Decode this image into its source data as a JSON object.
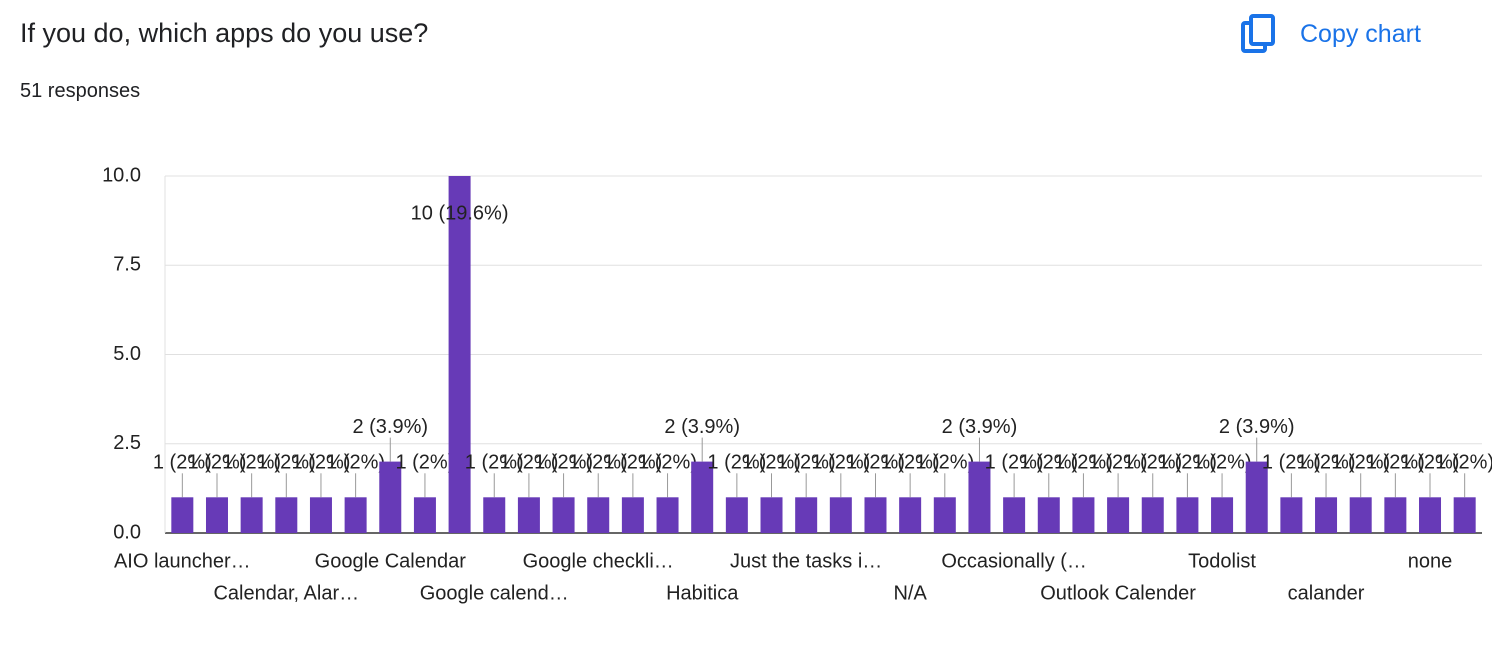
{
  "header": {
    "title": "If you do, which apps do you use?",
    "subtitle": "51 responses",
    "button": "Copy chart"
  },
  "chart_data": {
    "type": "bar",
    "color": "#673ab7",
    "grid": true,
    "ylim": [
      0,
      10
    ],
    "yticks": [
      {
        "value": 0,
        "label": "0.0"
      },
      {
        "value": 2.5,
        "label": "2.5"
      },
      {
        "value": 5,
        "label": "5.0"
      },
      {
        "value": 7.5,
        "label": "7.5"
      },
      {
        "value": 10,
        "label": "10.0"
      }
    ],
    "categories": [
      "AIO launcher…",
      null,
      null,
      "Calendar, Alar…",
      null,
      null,
      "Google Calendar",
      null,
      null,
      "Google calend…",
      null,
      null,
      "Google checkli…",
      null,
      null,
      "Habitica",
      null,
      null,
      "Just the tasks i…",
      null,
      null,
      "N/A",
      null,
      null,
      "Occasionally (…",
      null,
      null,
      "Outlook Calender",
      null,
      null,
      "Todolist",
      null,
      null,
      "calander",
      null,
      null,
      "none",
      null
    ],
    "values": [
      1,
      1,
      1,
      1,
      1,
      1,
      2,
      1,
      10,
      1,
      1,
      1,
      1,
      1,
      1,
      2,
      1,
      1,
      1,
      1,
      1,
      1,
      1,
      2,
      1,
      1,
      1,
      1,
      1,
      1,
      1,
      2,
      1,
      1,
      1,
      1,
      1,
      1
    ],
    "value_labels": [
      "1 (2%)",
      "1 (2%)",
      "1 (2%)",
      "1 (2%)",
      "1 (2%)",
      "1 (2%)",
      "2 (3.9%)",
      "1 (2%)",
      "10 (19.6%)",
      "1 (2%)",
      "1 (2%)",
      "1 (2%)",
      "1 (2%)",
      "1 (2%)",
      "1 (2%)",
      "2 (3.9%)",
      "1 (2%)",
      "1 (2%)",
      "1 (2%)",
      "1 (2%)",
      "1 (2%)",
      "1 (2%)",
      "1 (2%)",
      "2 (3.9%)",
      "1 (2%)",
      "1 (2%)",
      "1 (2%)",
      "1 (2%)",
      "1 (2%)",
      "1 (2%)",
      "1 (2%)",
      "2 (3.9%)",
      "1 (2%)",
      "1 (2%)",
      "1 (2%)",
      "1 (2%)",
      "1 (2%)",
      "1 (2%)"
    ]
  }
}
